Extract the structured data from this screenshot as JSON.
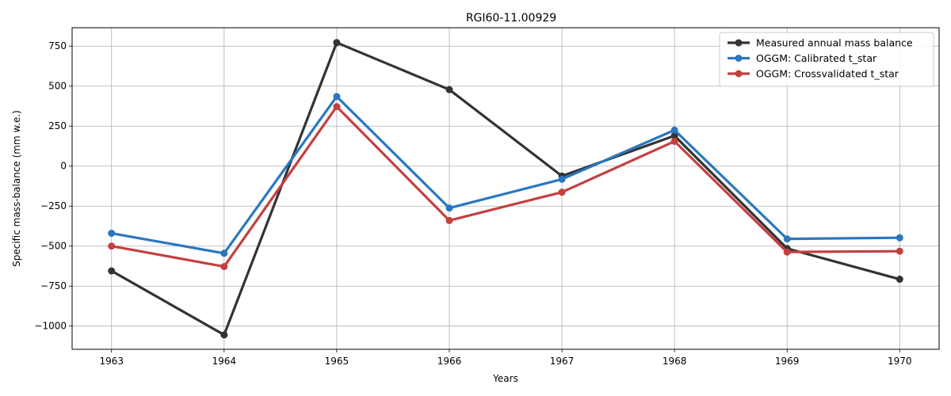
{
  "chart_data": {
    "type": "line",
    "title": "RGI60-11.00929",
    "xlabel": "Years",
    "ylabel": "Specific mass-balance (mm w.e.)",
    "x": [
      1963,
      1964,
      1965,
      1966,
      1967,
      1968,
      1969,
      1970
    ],
    "xlim": [
      1962.65,
      1970.35
    ],
    "ylim": [
      -1145,
      865
    ],
    "x_ticks": [
      1963,
      1964,
      1965,
      1966,
      1967,
      1968,
      1969,
      1970
    ],
    "y_ticks": [
      750,
      500,
      250,
      0,
      -250,
      -500,
      -750,
      -1000
    ],
    "y_tick_labels": [
      "750",
      "500",
      "250",
      "0",
      "−250",
      "−500",
      "−750",
      "−1000"
    ],
    "grid": true,
    "legend_position": "top-right",
    "series": [
      {
        "name": "Measured annual mass balance",
        "color": "#333333",
        "values": [
          -655,
          -1055,
          772,
          478,
          -62,
          190,
          -515,
          -707
        ]
      },
      {
        "name": "OGGM: Calibrated t_star",
        "color": "#2a77c0",
        "values": [
          -420,
          -545,
          435,
          -262,
          -82,
          225,
          -455,
          -448
        ]
      },
      {
        "name": "OGGM: Crossvalidated t_star",
        "color": "#c44040",
        "values": [
          -500,
          -628,
          372,
          -340,
          -163,
          155,
          -537,
          -532
        ]
      }
    ]
  }
}
